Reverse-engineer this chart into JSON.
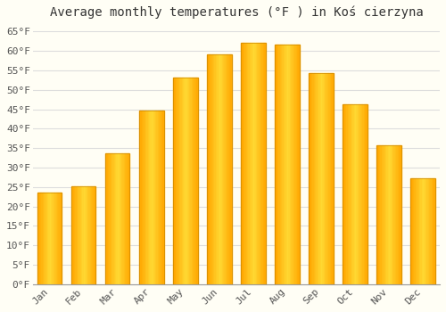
{
  "title": "Average monthly temperatures (°F ) in Koś cierzyna",
  "months": [
    "Jan",
    "Feb",
    "Mar",
    "Apr",
    "May",
    "Jun",
    "Jul",
    "Aug",
    "Sep",
    "Oct",
    "Nov",
    "Dec"
  ],
  "values": [
    23.5,
    25.2,
    33.8,
    44.6,
    53.1,
    59.2,
    62.2,
    61.7,
    54.3,
    46.4,
    35.8,
    27.3
  ],
  "bar_color": "#FFA500",
  "bar_color_light": "#FFD050",
  "background_color": "#FFFEF5",
  "grid_color": "#DDDDDD",
  "ytick_labels": [
    "0°F",
    "5°F",
    "10°F",
    "15°F",
    "20°F",
    "25°F",
    "30°F",
    "35°F",
    "40°F",
    "45°F",
    "50°F",
    "55°F",
    "60°F",
    "65°F"
  ],
  "ytick_values": [
    0,
    5,
    10,
    15,
    20,
    25,
    30,
    35,
    40,
    45,
    50,
    55,
    60,
    65
  ],
  "ylim": [
    0,
    67
  ],
  "title_fontsize": 10,
  "tick_fontsize": 8,
  "font_family": "monospace"
}
